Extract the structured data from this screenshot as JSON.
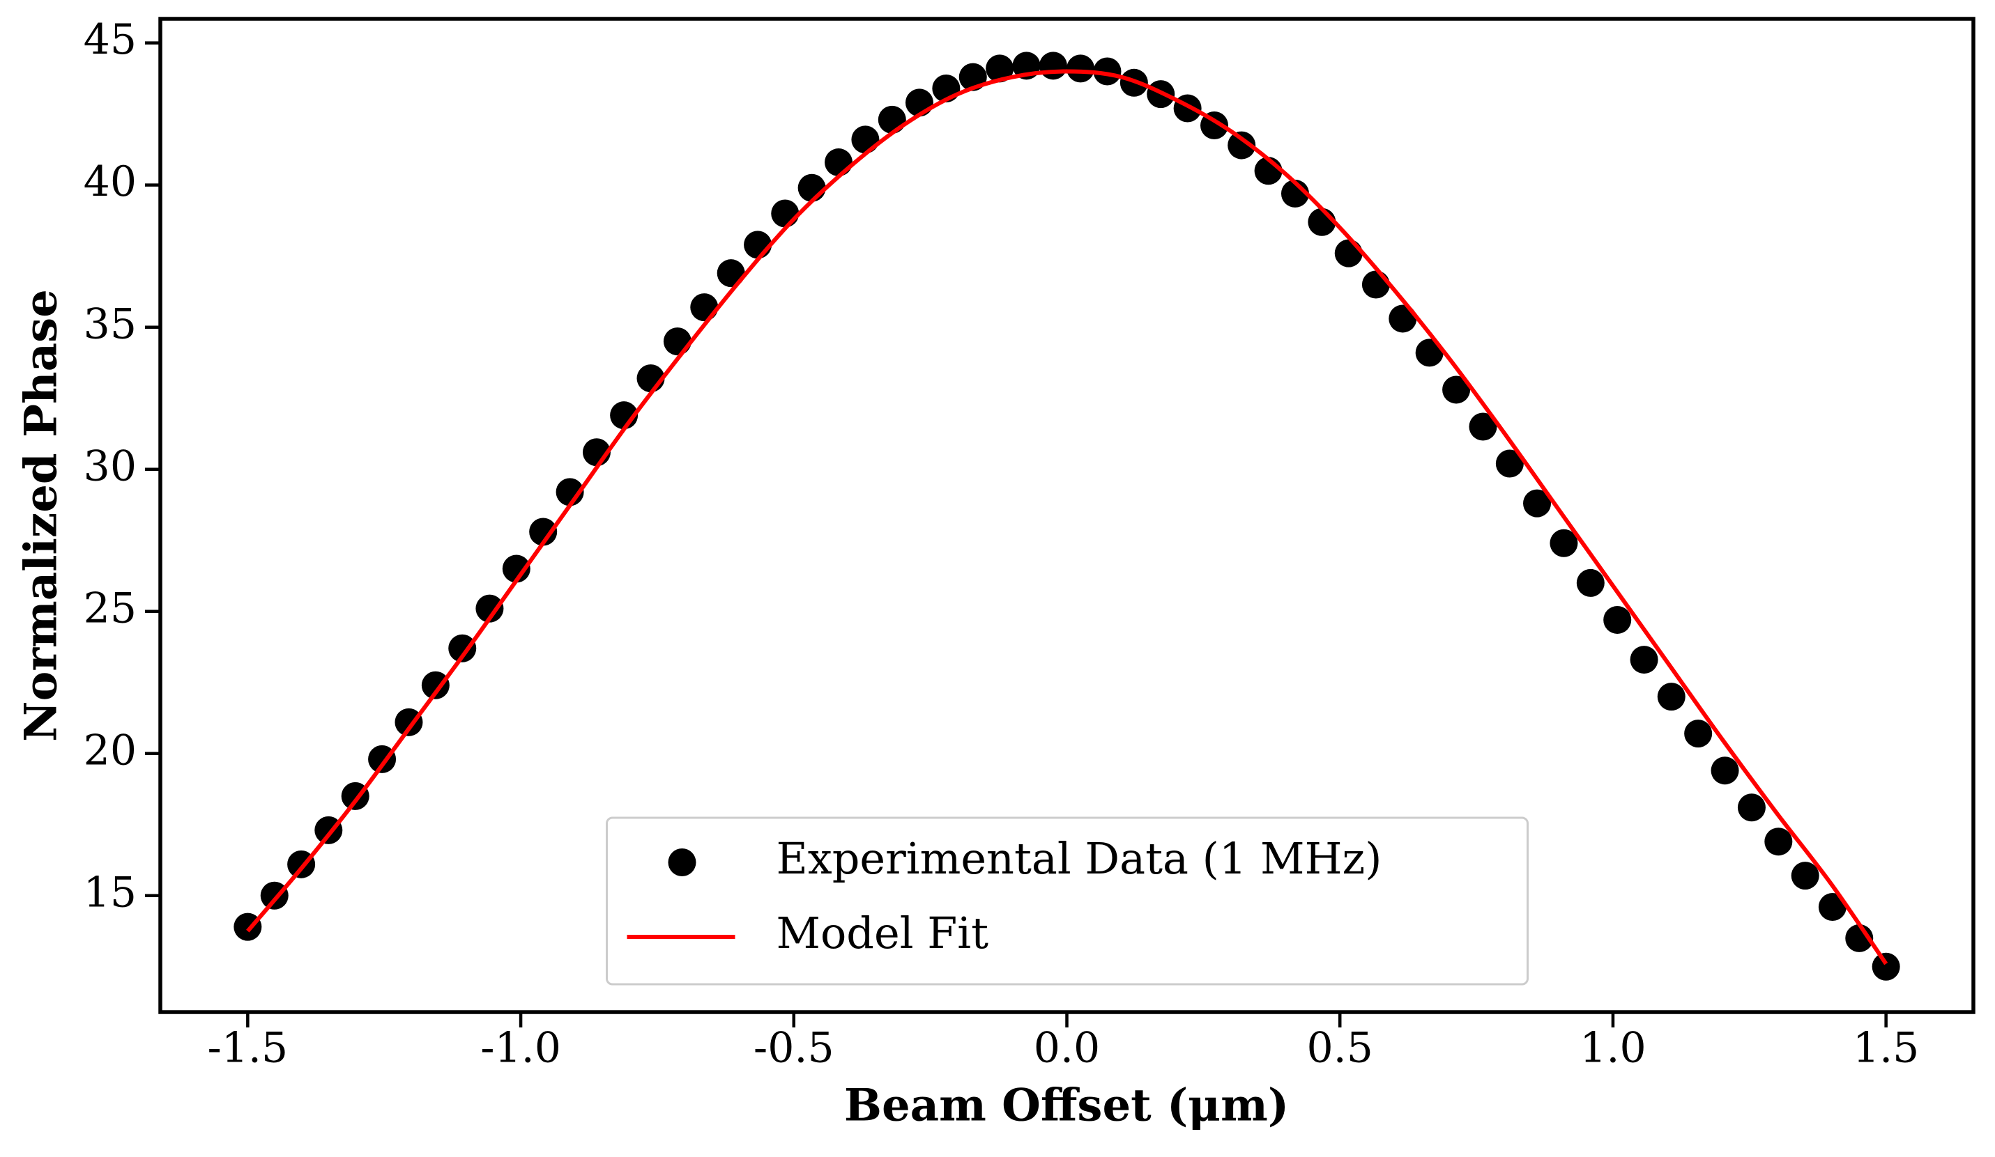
{
  "chart_data": {
    "type": "scatter",
    "xlabel": "Beam Offset (μm)",
    "ylabel": "Normalized Phase",
    "xlim": [
      -1.66,
      1.66
    ],
    "ylim": [
      10.9,
      45.85
    ],
    "xticks": [
      -1.5,
      {
        "value": -1,
        "label": "-1.0"
      },
      -0.5,
      {
        "value": 0,
        "label": "0.0"
      },
      0.5,
      {
        "value": 1,
        "label": "1.0"
      },
      1.5
    ],
    "yticks": [
      15,
      20,
      25,
      30,
      35,
      40,
      45
    ],
    "legend": "lower center",
    "series": [
      {
        "name": "Experimental Data (1 MHz)",
        "type": "scatter",
        "color": "#000000",
        "x": [
          -1.5,
          -1.451,
          -1.402,
          -1.352,
          -1.303,
          -1.254,
          -1.205,
          -1.156,
          -1.107,
          -1.057,
          -1.008,
          -0.959,
          -0.91,
          -0.861,
          -0.811,
          -0.762,
          -0.713,
          -0.664,
          -0.615,
          -0.566,
          -0.516,
          -0.467,
          -0.418,
          -0.369,
          -0.32,
          -0.27,
          -0.221,
          -0.172,
          -0.123,
          -0.074,
          -0.025,
          0.025,
          0.074,
          0.123,
          0.172,
          0.221,
          0.27,
          0.32,
          0.369,
          0.418,
          0.467,
          0.516,
          0.566,
          0.615,
          0.664,
          0.713,
          0.762,
          0.811,
          0.861,
          0.91,
          0.959,
          1.008,
          1.057,
          1.107,
          1.156,
          1.205,
          1.254,
          1.303,
          1.352,
          1.402,
          1.451,
          1.5
        ],
        "values": [
          13.9,
          15.0,
          16.1,
          17.3,
          18.5,
          19.8,
          21.1,
          22.4,
          23.7,
          25.1,
          26.5,
          27.8,
          29.2,
          30.6,
          31.9,
          33.2,
          34.5,
          35.7,
          36.9,
          37.9,
          39.0,
          39.9,
          40.8,
          41.6,
          42.3,
          42.9,
          43.4,
          43.8,
          44.1,
          44.2,
          44.2,
          44.1,
          44.0,
          43.6,
          43.2,
          42.7,
          42.1,
          41.4,
          40.5,
          39.7,
          38.7,
          37.6,
          36.5,
          35.3,
          34.1,
          32.8,
          31.5,
          30.2,
          28.8,
          27.4,
          26.0,
          24.7,
          23.3,
          22.0,
          20.7,
          19.4,
          18.1,
          16.9,
          15.7,
          14.6,
          13.5,
          12.5
        ]
      },
      {
        "name": "Model Fit",
        "type": "line",
        "color": "#ff0000",
        "x": [
          -1.5,
          -1.4,
          -1.3,
          -1.2,
          -1.1,
          -1.0,
          -0.9,
          -0.8,
          -0.7,
          -0.6,
          -0.5,
          -0.4,
          -0.3,
          -0.2,
          -0.1,
          0.0,
          0.1,
          0.2,
          0.3,
          0.4,
          0.5,
          0.6,
          0.7,
          0.8,
          0.9,
          1.0,
          1.1,
          1.2,
          1.3,
          1.4,
          1.5
        ],
        "values": [
          13.75,
          16.0,
          18.4,
          21.0,
          23.6,
          26.3,
          29.0,
          31.7,
          34.2,
          36.6,
          38.8,
          40.6,
          42.1,
          43.2,
          43.8,
          44.0,
          43.8,
          43.0,
          41.9,
          40.4,
          38.5,
          36.3,
          33.9,
          31.3,
          28.6,
          25.9,
          23.2,
          20.5,
          17.9,
          15.4,
          12.6
        ]
      }
    ]
  }
}
